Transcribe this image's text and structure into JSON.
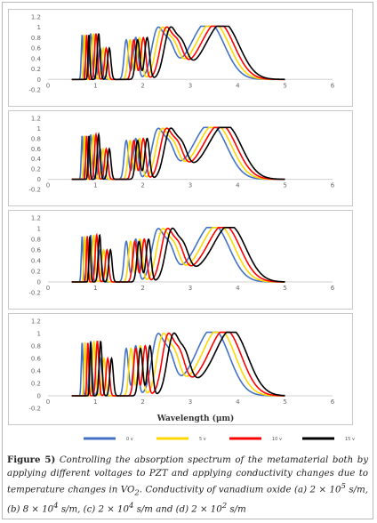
{
  "chart_data": [
    {
      "type": "line",
      "panel": "a",
      "xlim": [
        0,
        6
      ],
      "ylim": [
        -0.2,
        1.2
      ],
      "x_ticks": [
        "0",
        "1",
        "2",
        "3",
        "4",
        "5",
        "6"
      ],
      "y_ticks": [
        "1.2",
        "1",
        "0.8",
        "0.6",
        "0.4",
        "0.2",
        "0",
        "-0.2"
      ],
      "xlabel": "",
      "shift_um": 0.08,
      "series_peaks_um": {
        "first": [
          0.72,
          0.9,
          1.1
        ],
        "second": [
          1.65,
          1.85,
          2.3,
          2.55
        ],
        "main": [
          3.4
        ]
      },
      "grid": false
    },
    {
      "type": "line",
      "panel": "b",
      "xlim": [
        0,
        6
      ],
      "ylim": [
        -0.2,
        1.2
      ],
      "x_ticks": [
        "0",
        "1",
        "2",
        "3",
        "4",
        "5",
        "6"
      ],
      "y_ticks": [
        "1.2",
        "1",
        "0.8",
        "0.6",
        "0.4",
        "0.2",
        "0",
        "-0.2"
      ],
      "xlabel": "",
      "shift_um": 0.08,
      "series_peaks_um": {
        "first": [
          0.72,
          0.9,
          1.1
        ],
        "second": [
          1.65,
          1.85,
          2.3,
          2.55
        ],
        "main": [
          3.45
        ]
      },
      "grid": false
    },
    {
      "type": "line",
      "panel": "c",
      "xlim": [
        0,
        6
      ],
      "ylim": [
        -0.2,
        1.2
      ],
      "x_ticks": [
        "0",
        "1",
        "2",
        "3",
        "4",
        "5",
        "6"
      ],
      "y_ticks": [
        "1.2",
        "1",
        "0.8",
        "0.6",
        "0.4",
        "0.2",
        "0",
        "-0.2"
      ],
      "xlabel": "",
      "shift_um": 0.09,
      "series_peaks_um": {
        "first": [
          0.72,
          0.9,
          1.1
        ],
        "second": [
          1.65,
          1.85,
          2.3,
          2.55
        ],
        "main": [
          3.5
        ]
      },
      "grid": false
    },
    {
      "type": "line",
      "panel": "d",
      "xlim": [
        0,
        6
      ],
      "ylim": [
        -0.2,
        1.2
      ],
      "x_ticks": [
        "0",
        "1",
        "2",
        "3",
        "4",
        "5",
        "6"
      ],
      "y_ticks": [
        "1.2",
        "1",
        "0.8",
        "0.6",
        "0.4",
        "0.2",
        "0",
        "-0.2"
      ],
      "xlabel": "Wavelength (μm)",
      "shift_um": 0.1,
      "series_peaks_um": {
        "first": [
          0.72,
          0.9,
          1.1
        ],
        "second": [
          1.65,
          1.85,
          2.3,
          2.55
        ],
        "main": [
          3.5
        ]
      },
      "grid": false
    }
  ],
  "series": [
    {
      "name": "0 v",
      "color": "#4472c4"
    },
    {
      "name": "5 v",
      "color": "#ffd700"
    },
    {
      "name": "10 v",
      "color": "#ff0000"
    },
    {
      "name": "15 v",
      "color": "#000000"
    }
  ],
  "caption": {
    "label": "Figure 5)",
    "text": " Controlling the absorption spectrum of the metamaterial both by applying different voltages to PZT and applying conductivity changes due to temperature changes in VO",
    "sub": "2",
    "rest": ". Conductivity of vanadium oxide (a) 2 × 10",
    "sup1": "5",
    "t2": " s/m, (b) 8 × 10",
    "sup2": "4",
    "t3": " s/m, (c) 2 × 10",
    "sup3": "4",
    "t4": " s/m and (d) 2 × 10",
    "sup4": "2",
    "t5": " s/m"
  }
}
